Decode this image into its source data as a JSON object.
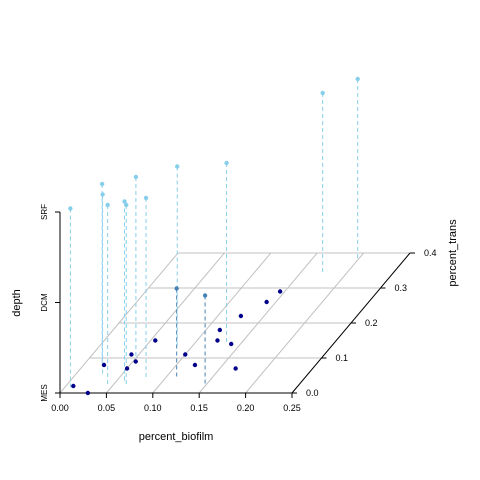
{
  "chart_data": {
    "type": "scatter",
    "xlabel": "percent_biofilm",
    "ylabel": "percent_trans",
    "zlabel": "depth",
    "xlim": [
      0,
      0.25
    ],
    "ylim": [
      0,
      0.4
    ],
    "x_ticks": [
      "0.00",
      "0.05",
      "0.10",
      "0.15",
      "0.20",
      "0.25"
    ],
    "y_ticks": [
      "0.0",
      "0.1",
      "0.2",
      "0.3",
      "0.4"
    ],
    "z_categories": [
      "MES",
      "DCM",
      "SRF"
    ],
    "grid": true,
    "colors": {
      "SRF": "#87ceeb",
      "DCM": "#4682b4",
      "MES": "#00008b",
      "grid": "#c0c0c0"
    },
    "series": [
      {
        "name": "SRF",
        "points": [
          {
            "x": 0.008,
            "y": 0.01
          },
          {
            "x": 0.02,
            "y": 0.08
          },
          {
            "x": 0.045,
            "y": 0.02
          },
          {
            "x": 0.03,
            "y": 0.05
          },
          {
            "x": 0.05,
            "y": 0.1
          },
          {
            "x": 0.06,
            "y": 0.03
          },
          {
            "x": 0.065,
            "y": 0.02
          },
          {
            "x": 0.085,
            "y": 0.13
          },
          {
            "x": 0.08,
            "y": 0.04
          },
          {
            "x": 0.135,
            "y": 0.14
          },
          {
            "x": 0.175,
            "y": 0.34
          },
          {
            "x": 0.2,
            "y": 0.38
          }
        ]
      },
      {
        "name": "DCM",
        "points": [
          {
            "x": 0.113,
            "y": 0.04
          },
          {
            "x": 0.15,
            "y": 0.02
          }
        ]
      },
      {
        "name": "MES",
        "points": [
          {
            "x": 0.008,
            "y": 0.02
          },
          {
            "x": 0.03,
            "y": 0.0
          },
          {
            "x": 0.022,
            "y": 0.08
          },
          {
            "x": 0.042,
            "y": 0.11
          },
          {
            "x": 0.05,
            "y": 0.07
          },
          {
            "x": 0.053,
            "y": 0.09
          },
          {
            "x": 0.055,
            "y": 0.15
          },
          {
            "x": 0.1,
            "y": 0.11
          },
          {
            "x": 0.12,
            "y": 0.08
          },
          {
            "x": 0.115,
            "y": 0.18
          },
          {
            "x": 0.122,
            "y": 0.15
          },
          {
            "x": 0.14,
            "y": 0.14
          },
          {
            "x": 0.125,
            "y": 0.22
          },
          {
            "x": 0.14,
            "y": 0.26
          },
          {
            "x": 0.145,
            "y": 0.29
          },
          {
            "x": 0.167,
            "y": 0.07
          }
        ]
      }
    ]
  }
}
